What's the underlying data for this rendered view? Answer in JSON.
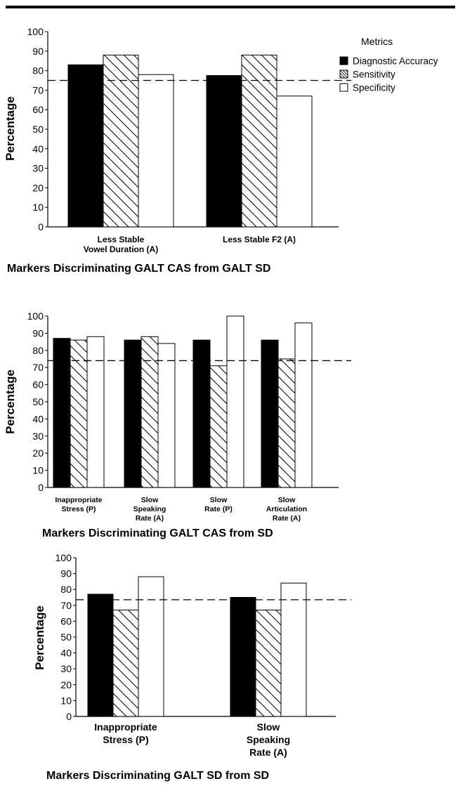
{
  "legend": {
    "title": "Metrics",
    "items": [
      {
        "label": "Diagnostic Accuracy",
        "fill": "solid"
      },
      {
        "label": "Sensitivity",
        "fill": "hatch"
      },
      {
        "label": "Specificity",
        "fill": "white"
      }
    ],
    "placement": "top-right"
  },
  "colors": {
    "solid": "#000000",
    "stroke": "#000000",
    "white": "#ffffff"
  },
  "chart_data": [
    {
      "type": "bar",
      "title": "Markers Discriminating GALT CAS from GALT SD",
      "ylabel": "Percentage",
      "ylim": [
        0,
        100
      ],
      "yticks": [
        "0",
        "10",
        "20",
        "30",
        "40",
        "50",
        "60",
        "70",
        "80",
        "90",
        "100"
      ],
      "reference_line": 75,
      "categories": [
        [
          "Less Stable",
          "Vowel Duration (A)"
        ],
        [
          "Less Stable F2 (A)"
        ]
      ],
      "series": [
        {
          "name": "Diagnostic Accuracy",
          "values": [
            83,
            77.5
          ]
        },
        {
          "name": "Sensitivity",
          "values": [
            88,
            88
          ]
        },
        {
          "name": "Specificity",
          "values": [
            78,
            67
          ]
        }
      ]
    },
    {
      "type": "bar",
      "title": "Markers Discriminating GALT CAS from SD",
      "ylabel": "Percentage",
      "ylim": [
        0,
        100
      ],
      "yticks": [
        "0",
        "10",
        "20",
        "30",
        "40",
        "50",
        "60",
        "70",
        "80",
        "90",
        "100"
      ],
      "reference_line": 74,
      "categories": [
        [
          "Inappropriate",
          "Stress (P)"
        ],
        [
          "Slow",
          "Speaking",
          "Rate (A)"
        ],
        [
          "Slow",
          "Rate (P)"
        ],
        [
          "Slow",
          "Articulation",
          "Rate (A)"
        ]
      ],
      "series": [
        {
          "name": "Diagnostic Accuracy",
          "values": [
            87,
            86,
            86,
            86
          ]
        },
        {
          "name": "Sensitivity",
          "values": [
            86,
            88,
            71,
            75
          ]
        },
        {
          "name": "Specificity",
          "values": [
            88,
            84,
            100,
            96
          ]
        }
      ]
    },
    {
      "type": "bar",
      "title": "Markers Discriminating GALT SD from SD",
      "ylabel": "Percentage",
      "ylim": [
        0,
        100
      ],
      "yticks": [
        "0",
        "10",
        "20",
        "30",
        "40",
        "50",
        "60",
        "70",
        "80",
        "90",
        "100"
      ],
      "reference_line": 73.5,
      "categories": [
        [
          "Inappropriate",
          "Stress (P)"
        ],
        [
          "Slow",
          "Speaking",
          "Rate (A)"
        ]
      ],
      "series": [
        {
          "name": "Diagnostic Accuracy",
          "values": [
            77,
            75
          ]
        },
        {
          "name": "Sensitivity",
          "values": [
            67,
            67
          ]
        },
        {
          "name": "Specificity",
          "values": [
            88,
            84
          ]
        }
      ]
    }
  ]
}
